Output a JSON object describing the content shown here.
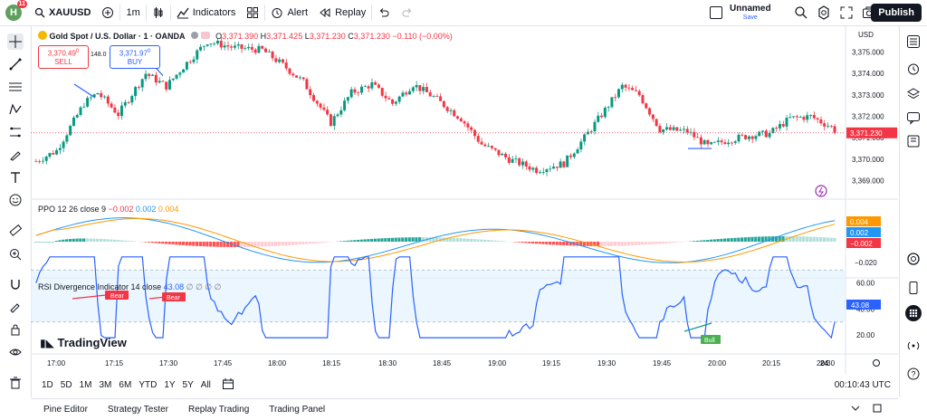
{
  "topbar": {
    "logo_letter": "H",
    "notification_count": "11",
    "symbol": "XAUUSD",
    "interval": "1m",
    "indicators_label": "Indicators",
    "alert_label": "Alert",
    "replay_label": "Replay",
    "layout_name": "Unnamed",
    "save_label": "Save",
    "publish_label": "Publish"
  },
  "main_legend": {
    "title": "Gold Spot / U.S. Dollar · 1 · OANDA",
    "O": "3,371.390",
    "H": "3,371.425",
    "L": "3,371.230",
    "C": "3,371.230",
    "change": "−0.110 (−0.00%)"
  },
  "trade": {
    "sell_price": "3,370.49",
    "sell_price_sup": "0",
    "sell_label": "SELL",
    "spread": "148.0",
    "buy_price": "3,371.97",
    "buy_price_sup": "0",
    "buy_label": "BUY"
  },
  "price_axis": {
    "currency": "USD",
    "ticks": [
      "3,375.000",
      "3,374.000",
      "3,373.000",
      "3,372.000",
      "3,371.000",
      "3,370.000",
      "3,369.000"
    ],
    "last_price": "3,371.230"
  },
  "ppo": {
    "label": "PPO 12 26 close 9",
    "v1": "−0.002",
    "v2": "0.002",
    "v3": "0.004",
    "ticks": [
      "0.020",
      "−0.020"
    ],
    "badges": [
      "0.004",
      "0.002",
      "−0.002"
    ]
  },
  "rsi": {
    "label": "RSI Divergence Indicator 14 close",
    "value": "43.08",
    "extras": "∅ ∅ ∅ ∅",
    "ticks": [
      "60.00",
      "40.00",
      "20.00"
    ],
    "badge": "43.08",
    "bear1": "Bear",
    "bear2": "Bear",
    "bull": "Bull"
  },
  "watermark": "TradingView",
  "time_axis": [
    "17:00",
    "17:15",
    "17:30",
    "17:45",
    "18:00",
    "18:15",
    "18:30",
    "18:45",
    "19:00",
    "19:15",
    "19:30",
    "19:45",
    "20:00",
    "20:15",
    "20:30",
    "20:45",
    "24"
  ],
  "ranges": [
    "1D",
    "5D",
    "1M",
    "3M",
    "6M",
    "YTD",
    "1Y",
    "5Y",
    "All"
  ],
  "clock": "00:10:43 UTC",
  "panels": [
    "Pine Editor",
    "Strategy Tester",
    "Replay Trading",
    "Trading Panel"
  ],
  "colors": {
    "up": "#089981",
    "down": "#f23645",
    "rsi": "#2962ff",
    "ppo_fast": "#2196f3",
    "ppo_slow": "#ff9800"
  }
}
